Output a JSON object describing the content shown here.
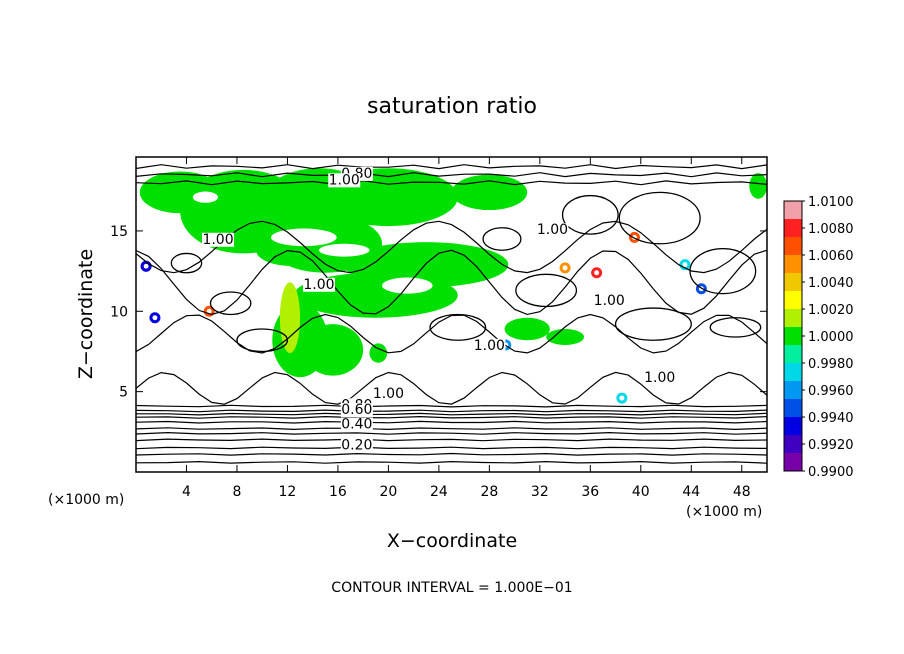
{
  "chart_data": {
    "type": "heatmap",
    "title": "saturation ratio",
    "xlabel": "X−coordinate",
    "ylabel": "Z−coordinate",
    "x_unit_left": "(×1000 m)",
    "x_unit_right": "(×1000 m)",
    "xlim": [
      0,
      50
    ],
    "ylim": [
      0,
      19.6
    ],
    "xticks": [
      4,
      8,
      12,
      16,
      20,
      24,
      28,
      32,
      36,
      40,
      44,
      48
    ],
    "yticks": [
      5,
      10,
      15
    ],
    "footer": "CONTOUR INTERVAL = 1.000E−01",
    "colorbar": {
      "range": [
        0.99,
        1.01
      ],
      "labels": [
        "1.0100",
        "1.0080",
        "1.0060",
        "1.0040",
        "1.0020",
        "1.0000",
        "0.9980",
        "0.9960",
        "0.9940",
        "0.9920",
        "0.9900"
      ],
      "colors": [
        "#f0a0a8",
        "#ff2020",
        "#ff5000",
        "#ff9000",
        "#f0c800",
        "#ffff00",
        "#b0f000",
        "#00e000",
        "#00f0a0",
        "#00d8e8",
        "#0098f0",
        "#0050e8",
        "#0000e0",
        "#4000c0",
        "#7800a8"
      ]
    },
    "contour_labels": [
      {
        "text": "0.80",
        "x": 17.5,
        "z": 18.3
      },
      {
        "text": "1.00",
        "x": 16.5,
        "z": 17.9
      },
      {
        "text": "1.00",
        "x": 6.5,
        "z": 14.2
      },
      {
        "text": "1.00",
        "x": 14.5,
        "z": 11.4
      },
      {
        "text": "1.00",
        "x": 33.0,
        "z": 14.8
      },
      {
        "text": "1.00",
        "x": 37.5,
        "z": 10.4
      },
      {
        "text": "1.00",
        "x": 28.0,
        "z": 7.6
      },
      {
        "text": "1.00",
        "x": 41.5,
        "z": 5.6
      },
      {
        "text": "1.00",
        "x": 20.0,
        "z": 4.6
      },
      {
        "text": "0.80",
        "x": 17.5,
        "z": 3.9
      },
      {
        "text": "0.60",
        "x": 17.5,
        "z": 3.6
      },
      {
        "text": "0.40",
        "x": 17.5,
        "z": 2.7
      },
      {
        "text": "0.20",
        "x": 17.5,
        "z": 1.4
      }
    ]
  }
}
